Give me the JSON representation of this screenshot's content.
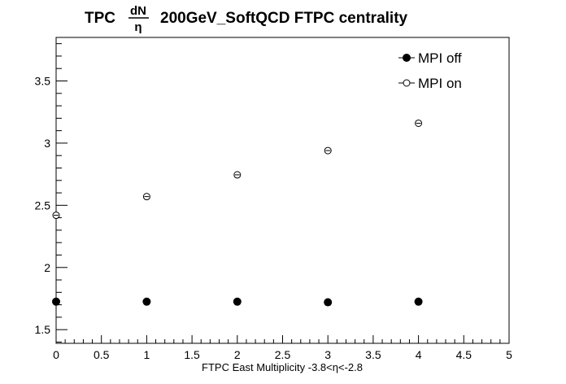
{
  "chart_data": {
    "type": "scatter",
    "title": {
      "prefix": "TPC",
      "frac_numerator": "dN",
      "frac_denominator": "η",
      "suffix": "200GeV_SoftQCD FTPC centrality"
    },
    "xlabel": "FTPC East Multiplicity -3.8<η<-2.8",
    "ylabel": "",
    "xlim": [
      0,
      5
    ],
    "ylim": [
      1.39,
      3.85
    ],
    "x_ticks": [
      "0",
      "0.5",
      "1",
      "1.5",
      "2",
      "2.5",
      "3",
      "3.5",
      "4",
      "4.5",
      "5"
    ],
    "y_ticks": [
      "1.5",
      "2",
      "2.5",
      "3",
      "3.5"
    ],
    "legend_position": "top-right",
    "grid": false,
    "series": [
      {
        "name": "MPI off",
        "marker": "filled-circle",
        "color": "#000000",
        "x": [
          0,
          1,
          2,
          3,
          4
        ],
        "y": [
          1.725,
          1.725,
          1.725,
          1.72,
          1.725
        ]
      },
      {
        "name": "MPI on",
        "marker": "open-circle",
        "color": "#000000",
        "x": [
          0,
          1,
          2,
          3,
          4
        ],
        "y": [
          2.42,
          2.57,
          2.745,
          2.94,
          3.16
        ]
      }
    ]
  }
}
